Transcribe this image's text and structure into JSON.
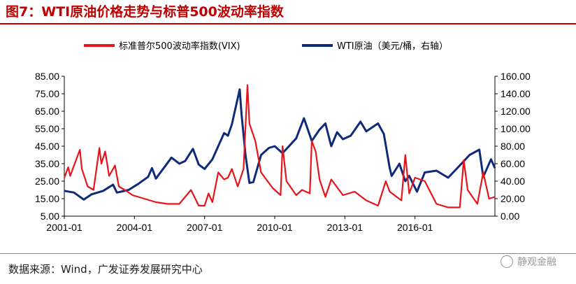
{
  "figure": {
    "title": "图7：WTI原油价格走势与标普500波动率指数",
    "source": "数据来源：Wind，广发证券发展研究中心",
    "watermark": "静观金融"
  },
  "chart_data": {
    "type": "line",
    "title": "图7：WTI原油价格走势与标普500波动率指数",
    "legend_position": "top",
    "grid": false,
    "x_ticks": [
      "2001-01",
      "2004-01",
      "2007-01",
      "2010-01",
      "2013-01",
      "2016-01"
    ],
    "x_range": [
      "2001-01",
      "2019-06"
    ],
    "y_left": {
      "ticks": [
        "85.00",
        "75.00",
        "65.00",
        "55.00",
        "45.00",
        "35.00",
        "25.00",
        "15.00",
        "5.00"
      ],
      "lim": [
        5,
        85
      ]
    },
    "y_right": {
      "ticks": [
        "160.00",
        "140.00",
        "120.00",
        "100.00",
        "80.00",
        "60.00",
        "40.00",
        "20.00",
        "0.00"
      ],
      "lim": [
        0,
        160
      ]
    },
    "series": [
      {
        "name": "标准普尔500波动率指数(VIX)",
        "axis": "left",
        "color": "#e8141b",
        "points": [
          [
            "2001-01",
            27
          ],
          [
            "2001-03",
            33
          ],
          [
            "2001-04",
            28
          ],
          [
            "2001-09",
            43
          ],
          [
            "2001-10",
            32
          ],
          [
            "2002-01",
            22
          ],
          [
            "2002-04",
            20
          ],
          [
            "2002-07",
            44
          ],
          [
            "2002-08",
            35
          ],
          [
            "2002-10",
            42
          ],
          [
            "2002-12",
            28
          ],
          [
            "2003-03",
            34
          ],
          [
            "2003-05",
            22
          ],
          [
            "2003-08",
            20
          ],
          [
            "2003-12",
            17
          ],
          [
            "2004-06",
            15
          ],
          [
            "2004-12",
            13
          ],
          [
            "2005-06",
            12
          ],
          [
            "2005-12",
            12
          ],
          [
            "2006-06",
            20
          ],
          [
            "2006-10",
            11
          ],
          [
            "2007-01",
            11
          ],
          [
            "2007-03",
            18
          ],
          [
            "2007-05",
            13
          ],
          [
            "2007-08",
            30
          ],
          [
            "2007-11",
            26
          ],
          [
            "2008-01",
            27
          ],
          [
            "2008-03",
            32
          ],
          [
            "2008-06",
            22
          ],
          [
            "2008-09",
            32
          ],
          [
            "2008-11",
            80
          ],
          [
            "2008-12",
            58
          ],
          [
            "2009-03",
            48
          ],
          [
            "2009-06",
            30
          ],
          [
            "2009-12",
            21
          ],
          [
            "2010-04",
            17
          ],
          [
            "2010-05",
            45
          ],
          [
            "2010-07",
            25
          ],
          [
            "2010-12",
            17
          ],
          [
            "2011-03",
            20
          ],
          [
            "2011-07",
            18
          ],
          [
            "2011-08",
            48
          ],
          [
            "2011-10",
            42
          ],
          [
            "2011-12",
            26
          ],
          [
            "2012-03",
            16
          ],
          [
            "2012-06",
            26
          ],
          [
            "2012-12",
            17
          ],
          [
            "2013-06",
            19
          ],
          [
            "2013-12",
            14
          ],
          [
            "2014-06",
            11
          ],
          [
            "2014-10",
            25
          ],
          [
            "2014-12",
            19
          ],
          [
            "2015-06",
            14
          ],
          [
            "2015-08",
            40
          ],
          [
            "2015-10",
            18
          ],
          [
            "2016-01",
            27
          ],
          [
            "2016-06",
            25
          ],
          [
            "2016-12",
            12
          ],
          [
            "2017-06",
            10
          ],
          [
            "2017-12",
            10
          ],
          [
            "2018-02",
            37
          ],
          [
            "2018-04",
            20
          ],
          [
            "2018-09",
            12
          ],
          [
            "2018-12",
            30
          ],
          [
            "2019-03",
            15
          ],
          [
            "2019-06",
            16
          ]
        ]
      },
      {
        "name": "WTI原油（美元/桶，右轴）",
        "axis": "right",
        "color": "#0f2a7a",
        "points": [
          [
            "2001-01",
            29
          ],
          [
            "2001-06",
            27
          ],
          [
            "2001-11",
            19
          ],
          [
            "2002-03",
            25
          ],
          [
            "2002-09",
            29
          ],
          [
            "2003-02",
            36
          ],
          [
            "2003-04",
            27
          ],
          [
            "2003-10",
            30
          ],
          [
            "2004-03",
            37
          ],
          [
            "2004-08",
            45
          ],
          [
            "2004-10",
            55
          ],
          [
            "2004-12",
            43
          ],
          [
            "2005-04",
            55
          ],
          [
            "2005-08",
            67
          ],
          [
            "2005-12",
            60
          ],
          [
            "2006-03",
            63
          ],
          [
            "2006-07",
            77
          ],
          [
            "2006-10",
            59
          ],
          [
            "2007-01",
            54
          ],
          [
            "2007-05",
            65
          ],
          [
            "2007-07",
            75
          ],
          [
            "2007-11",
            95
          ],
          [
            "2008-01",
            92
          ],
          [
            "2008-03",
            105
          ],
          [
            "2008-05",
            125
          ],
          [
            "2008-07",
            145
          ],
          [
            "2008-08",
            116
          ],
          [
            "2008-10",
            70
          ],
          [
            "2008-12",
            38
          ],
          [
            "2009-02",
            39
          ],
          [
            "2009-06",
            70
          ],
          [
            "2009-10",
            78
          ],
          [
            "2010-01",
            80
          ],
          [
            "2010-05",
            72
          ],
          [
            "2010-12",
            89
          ],
          [
            "2011-04",
            112
          ],
          [
            "2011-08",
            86
          ],
          [
            "2011-12",
            99
          ],
          [
            "2012-03",
            106
          ],
          [
            "2012-06",
            80
          ],
          [
            "2012-09",
            96
          ],
          [
            "2012-12",
            88
          ],
          [
            "2013-04",
            92
          ],
          [
            "2013-09",
            108
          ],
          [
            "2013-12",
            97
          ],
          [
            "2014-06",
            106
          ],
          [
            "2014-09",
            94
          ],
          [
            "2014-12",
            55
          ],
          [
            "2015-01",
            46
          ],
          [
            "2015-05",
            60
          ],
          [
            "2015-08",
            40
          ],
          [
            "2015-10",
            46
          ],
          [
            "2016-02",
            28
          ],
          [
            "2016-06",
            50
          ],
          [
            "2016-12",
            52
          ],
          [
            "2017-06",
            44
          ],
          [
            "2017-12",
            58
          ],
          [
            "2018-05",
            70
          ],
          [
            "2018-10",
            76
          ],
          [
            "2018-12",
            45
          ],
          [
            "2019-04",
            65
          ],
          [
            "2019-06",
            55
          ]
        ]
      }
    ]
  }
}
